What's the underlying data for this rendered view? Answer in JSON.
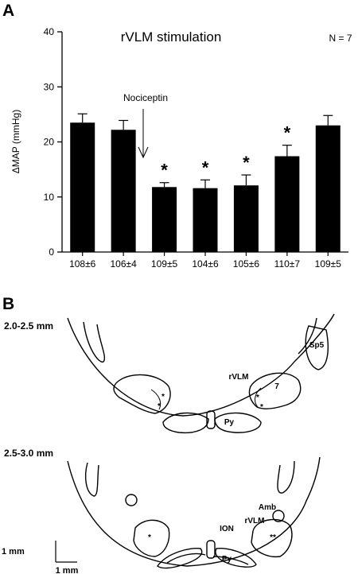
{
  "panel_a_label": "A",
  "panel_b_label": "B",
  "chart_data": {
    "type": "bar",
    "title": "rVLM stimulation",
    "n_label": "N = 7",
    "ylabel": "ΔMAP (mmHg)",
    "xlabel": "",
    "ylim": [
      0,
      40
    ],
    "yticks": [
      0,
      10,
      20,
      30,
      40
    ],
    "categories": [
      "108±6",
      "106±4",
      "109±5",
      "104±6",
      "105±6",
      "110±7",
      "109±5"
    ],
    "values": [
      23.5,
      22.2,
      11.8,
      11.6,
      12.1,
      17.4,
      23.0
    ],
    "errors": [
      1.6,
      1.7,
      0.8,
      1.5,
      1.9,
      2.0,
      1.8
    ],
    "significant": [
      false,
      false,
      true,
      true,
      true,
      true,
      false
    ],
    "significance_marker": "*",
    "annotation": {
      "text": "Nociceptin",
      "between": [
        1,
        2
      ]
    },
    "bar_color": "#000000"
  },
  "panel_b": {
    "section1": {
      "depth": "2.0-2.5 mm",
      "labels": {
        "sp5": "Sp5",
        "rvlm": "rVLM",
        "seven": "7",
        "py": "Py"
      },
      "markers": [
        "*",
        "*",
        "*",
        "*"
      ]
    },
    "section2": {
      "depth": "2.5-3.0 mm",
      "labels": {
        "amb": "Amb",
        "rvlm": "rVLM",
        "ion": "ION",
        "py": "Py"
      },
      "markers": [
        "*",
        "**"
      ]
    },
    "scalebar": {
      "vertical": "1 mm",
      "horizontal": "1 mm"
    }
  }
}
